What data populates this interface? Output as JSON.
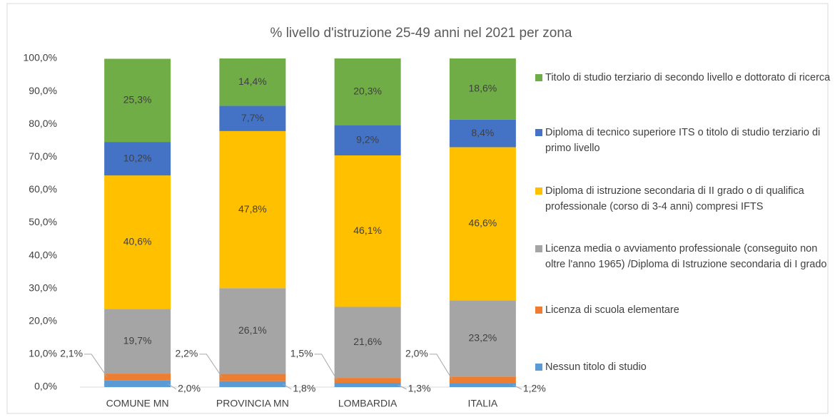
{
  "chart_data": {
    "type": "stacked_bar",
    "title": "% livello d'istruzione  25-49 anni nel 2021 per zona",
    "categories": [
      "COMUNE MN",
      "PROVINCIA MN",
      "LOMBARDIA",
      "ITALIA"
    ],
    "series": [
      {
        "name": "Nessun titolo di studio",
        "color": "#5b9bd5",
        "values": [
          2.0,
          1.8,
          1.3,
          1.2
        ],
        "value_labels": [
          "2,0%",
          "1,8%",
          "1,3%",
          "1,2%"
        ]
      },
      {
        "name": "Licenza di scuola elementare",
        "color": "#ed7d31",
        "values": [
          2.1,
          2.2,
          1.5,
          2.0
        ],
        "value_labels": [
          "2,1%",
          "2,2%",
          "1,5%",
          "2,0%"
        ]
      },
      {
        "name": "Licenza media o avviamento professionale (conseguito non oltre l'anno 1965) /Diploma di Istruzione secondaria di I grado",
        "color": "#a5a5a5",
        "values": [
          19.7,
          26.1,
          21.6,
          23.2
        ],
        "value_labels": [
          "19,7%",
          "26,1%",
          "21,6%",
          "23,2%"
        ]
      },
      {
        "name": "Diploma di istruzione secondaria di II grado o di qualifica professionale (corso di 3-4 anni) compresi IFTS",
        "color": "#ffc000",
        "values": [
          40.6,
          47.8,
          46.1,
          46.6
        ],
        "value_labels": [
          "40,6%",
          "47,8%",
          "46,1%",
          "46,6%"
        ]
      },
      {
        "name": "Diploma di tecnico superiore ITS o titolo di studio terziario di primo livello",
        "color": "#4472c4",
        "values": [
          10.2,
          7.7,
          9.2,
          8.4
        ],
        "value_labels": [
          "10,2%",
          "7,7%",
          "9,2%",
          "8,4%"
        ]
      },
      {
        "name": "Titolo di studio terziario di secondo livello e dottorato di ricerca",
        "color": "#70ad47",
        "values": [
          25.3,
          14.4,
          20.3,
          18.6
        ],
        "value_labels": [
          "25,3%",
          "14,4%",
          "20,3%",
          "18,6%"
        ]
      }
    ],
    "ylim": [
      0,
      100
    ],
    "yticks": [
      {
        "value": 0,
        "label": "0,0%"
      },
      {
        "value": 10,
        "label": "10,0%"
      },
      {
        "value": 20,
        "label": "20,0%"
      },
      {
        "value": 30,
        "label": "30,0%"
      },
      {
        "value": 40,
        "label": "40,0%"
      },
      {
        "value": 50,
        "label": "50,0%"
      },
      {
        "value": 60,
        "label": "60,0%"
      },
      {
        "value": 70,
        "label": "70,0%"
      },
      {
        "value": 80,
        "label": "80,0%"
      },
      {
        "value": 90,
        "label": "90,0%"
      },
      {
        "value": 100,
        "label": "100,0%"
      }
    ],
    "grid": false,
    "legend": "right"
  }
}
